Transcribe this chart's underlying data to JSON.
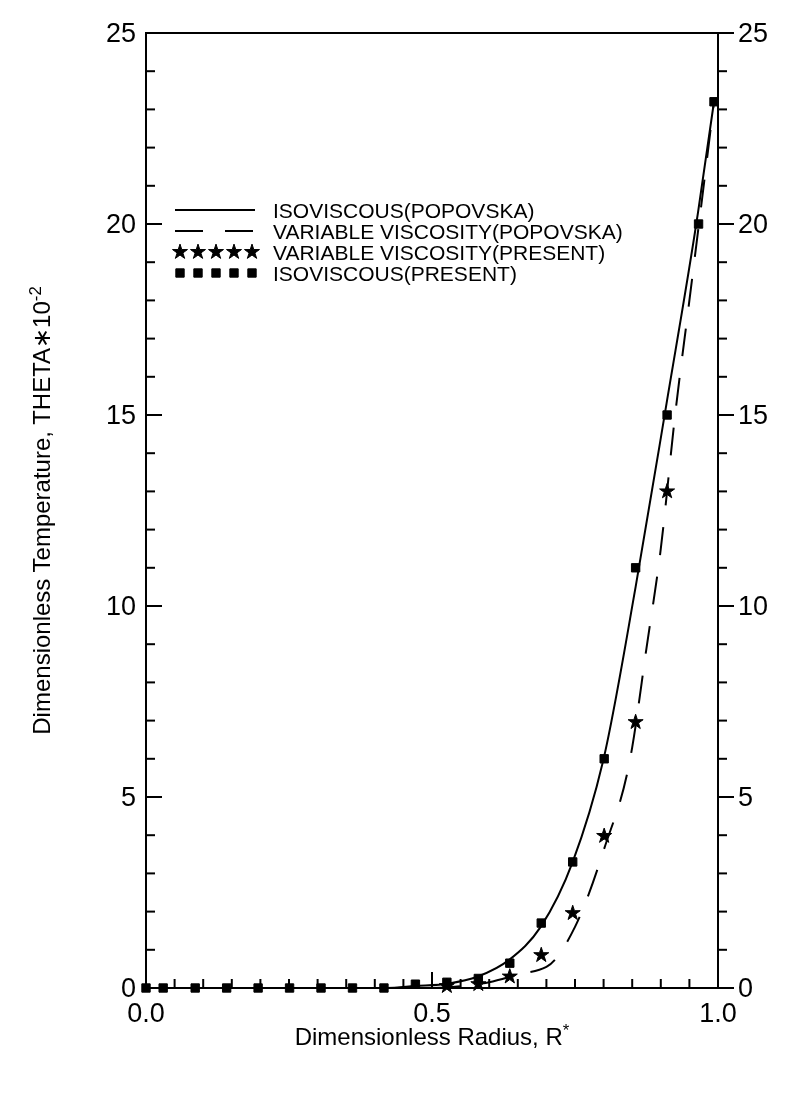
{
  "chart_data": {
    "type": "line",
    "xlabel": "Dimensionless Radius, R$^{*}$",
    "ylabel": "Dimensionless Temperature, THETA∗10$^{-2}$",
    "xlim": [
      0,
      1
    ],
    "ylim": [
      0,
      25
    ],
    "y2lim": [
      0,
      25
    ],
    "xticks": [
      {
        "value": 0,
        "label": "0.0"
      },
      {
        "value": 0.05,
        "label": null
      },
      {
        "value": 0.1,
        "label": null
      },
      {
        "value": 0.15,
        "label": null
      },
      {
        "value": 0.2,
        "label": null
      },
      {
        "value": 0.25,
        "label": null
      },
      {
        "value": 0.3,
        "label": null
      },
      {
        "value": 0.35,
        "label": null
      },
      {
        "value": 0.4,
        "label": null
      },
      {
        "value": 0.45,
        "label": null
      },
      {
        "value": 0.5,
        "label": "0.5"
      },
      {
        "value": 0.55,
        "label": null
      },
      {
        "value": 0.6,
        "label": null
      },
      {
        "value": 0.65,
        "label": null
      },
      {
        "value": 0.7,
        "label": null
      },
      {
        "value": 0.75,
        "label": null
      },
      {
        "value": 0.8,
        "label": null
      },
      {
        "value": 0.85,
        "label": null
      },
      {
        "value": 0.9,
        "label": null
      },
      {
        "value": 0.95,
        "label": null
      },
      {
        "value": 1,
        "label": "1.0"
      }
    ],
    "yticks": [
      0,
      {
        "value": 1,
        "label": null
      },
      {
        "value": 2,
        "label": null
      },
      {
        "value": 3,
        "label": null
      },
      {
        "value": 4,
        "label": null
      },
      5,
      {
        "value": 6,
        "label": null
      },
      {
        "value": 7,
        "label": null
      },
      {
        "value": 8,
        "label": null
      },
      {
        "value": 9,
        "label": null
      },
      10,
      {
        "value": 11,
        "label": null
      },
      {
        "value": 12,
        "label": null
      },
      {
        "value": 13,
        "label": null
      },
      {
        "value": 14,
        "label": null
      },
      15,
      {
        "value": 16,
        "label": null
      },
      {
        "value": 17,
        "label": null
      },
      {
        "value": 18,
        "label": null
      },
      {
        "value": 19,
        "label": null
      },
      20,
      {
        "value": 21,
        "label": null
      },
      {
        "value": 22,
        "label": null
      },
      {
        "value": 23,
        "label": null
      },
      {
        "value": 24,
        "label": null
      },
      25
    ],
    "y2ticks": [
      0,
      {
        "value": 1,
        "label": null
      },
      {
        "value": 2,
        "label": null
      },
      {
        "value": 3,
        "label": null
      },
      {
        "value": 4,
        "label": null
      },
      5,
      {
        "value": 6,
        "label": null
      },
      {
        "value": 7,
        "label": null
      },
      {
        "value": 8,
        "label": null
      },
      {
        "value": 9,
        "label": null
      },
      10,
      {
        "value": 11,
        "label": null
      },
      {
        "value": 12,
        "label": null
      },
      {
        "value": 13,
        "label": null
      },
      {
        "value": 14,
        "label": null
      },
      15,
      {
        "value": 16,
        "label": null
      },
      {
        "value": 17,
        "label": null
      },
      {
        "value": 18,
        "label": null
      },
      {
        "value": 19,
        "label": null
      },
      20,
      {
        "value": 21,
        "label": null
      },
      {
        "value": 22,
        "label": null
      },
      {
        "value": 23,
        "label": null
      },
      {
        "value": 24,
        "label": null
      },
      25
    ],
    "grid": false,
    "legend": "top left",
    "series": [
      {
        "name": "ISOVISCOUS(POPOVSKA)",
        "color": "#000000",
        "marker": "none",
        "line_style": "solid",
        "x": [
          0,
          0.42,
          0.47,
          0.53,
          0.58,
          0.636,
          0.69,
          0.746,
          0.8,
          0.856,
          0.91,
          0.965,
          0.993
        ],
        "values": [
          0,
          0,
          0.05,
          0.12,
          0.3,
          0.75,
          1.6,
          3.3,
          6.0,
          10.5,
          15.3,
          20.3,
          23.2
        ]
      },
      {
        "name": "VARIABLE VISCOSITY(POPOVSKA)",
        "color": "#000000",
        "marker": "none",
        "line_style": "dashed",
        "x": [
          0.5,
          0.55,
          0.6,
          0.65,
          0.7,
          0.75,
          0.8,
          0.85,
          0.875,
          0.9,
          0.925,
          0.95,
          0.97,
          0.993
        ],
        "values": [
          0,
          0.05,
          0.15,
          0.35,
          0.55,
          1.6,
          3.6,
          6.3,
          8.9,
          11.5,
          15,
          18,
          20.4,
          23.2
        ]
      },
      {
        "name": "VARIABLE VISCOSITY(PRESENT)",
        "type": "scatter",
        "color": "#000000",
        "marker": "star",
        "x": [
          0.526,
          0.581,
          0.636,
          0.691,
          0.746,
          0.801,
          0.856,
          0.911
        ],
        "values": [
          0.05,
          0.1,
          0.3,
          0.86,
          1.96,
          3.98,
          6.96,
          13.0
        ]
      },
      {
        "name": "ISOVISCOUS(PRESENT)",
        "type": "scatter",
        "color": "#000000",
        "marker": "square",
        "x": [
          0,
          0.03,
          0.086,
          0.141,
          0.196,
          0.251,
          0.306,
          0.361,
          0.416,
          0.471,
          0.526,
          0.581,
          0.636,
          0.691,
          0.746,
          0.801,
          0.856,
          0.911,
          0.966,
          0.993
        ],
        "values": [
          0,
          0,
          0,
          0,
          0,
          0,
          0,
          0,
          0,
          0.1,
          0.15,
          0.25,
          0.65,
          1.7,
          3.3,
          6.0,
          11.0,
          15.0,
          20.0,
          23.2
        ]
      }
    ]
  }
}
